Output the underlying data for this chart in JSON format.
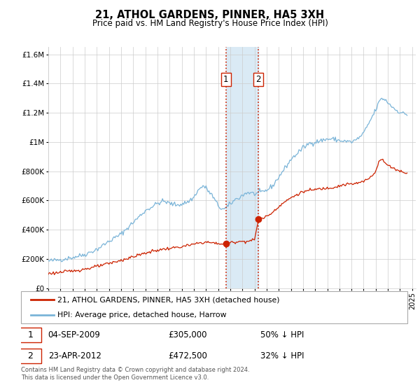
{
  "title": "21, ATHOL GARDENS, PINNER, HA5 3XH",
  "subtitle": "Price paid vs. HM Land Registry's House Price Index (HPI)",
  "hpi_color": "#7ab4d8",
  "price_color": "#cc2200",
  "shading_color": "#daeaf5",
  "vline_color": "#cc2200",
  "background_color": "#ffffff",
  "ylim": [
    0,
    1650000
  ],
  "yticks": [
    0,
    200000,
    400000,
    600000,
    800000,
    1000000,
    1200000,
    1400000,
    1600000
  ],
  "ytick_labels": [
    "£0",
    "£200K",
    "£400K",
    "£600K",
    "£800K",
    "£1M",
    "£1.2M",
    "£1.4M",
    "£1.6M"
  ],
  "legend_label_price": "21, ATHOL GARDENS, PINNER, HA5 3XH (detached house)",
  "legend_label_hpi": "HPI: Average price, detached house, Harrow",
  "annotation1_label": "1",
  "annotation1_date": "04-SEP-2009",
  "annotation1_price": "£305,000",
  "annotation1_text": "50% ↓ HPI",
  "annotation2_label": "2",
  "annotation2_date": "23-APR-2012",
  "annotation2_price": "£472,500",
  "annotation2_text": "32% ↓ HPI",
  "footer1": "Contains HM Land Registry data © Crown copyright and database right 2024.",
  "footer2": "This data is licensed under the Open Government Licence v3.0.",
  "sale1_x": 2009.67,
  "sale1_y": 305000,
  "sale2_x": 2012.33,
  "sale2_y": 472500,
  "shade_x1": 2009.67,
  "shade_x2": 2012.33,
  "xlim_left": 1995.0,
  "xlim_right": 2025.3
}
